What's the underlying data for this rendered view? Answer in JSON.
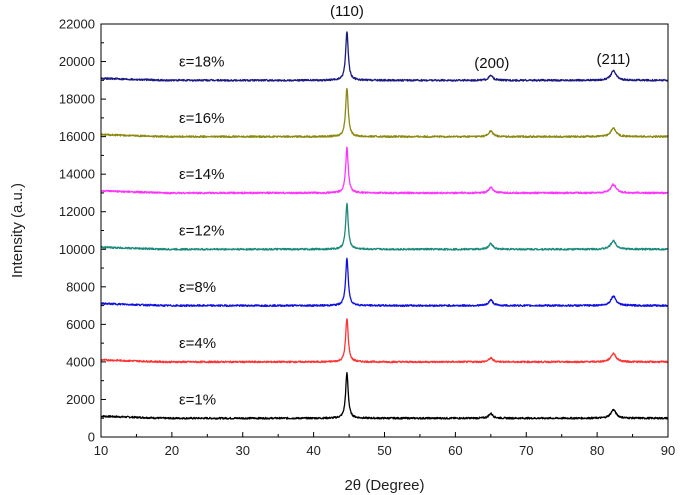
{
  "chart_data": {
    "type": "line",
    "title": "",
    "xlabel": "2θ (Degree)",
    "ylabel": "Intensity (a.u.)",
    "xlim": [
      10,
      90
    ],
    "ylim": [
      0,
      22000
    ],
    "xticks": [
      10,
      20,
      30,
      40,
      50,
      60,
      70,
      80,
      90
    ],
    "yticks": [
      0,
      2000,
      4000,
      6000,
      8000,
      10000,
      12000,
      14000,
      16000,
      18000,
      20000,
      22000
    ],
    "grid": false,
    "legend": "none",
    "peaks": [
      {
        "label": "(110)",
        "x": 44.7
      },
      {
        "label": "(200)",
        "x": 65.0
      },
      {
        "label": "(211)",
        "x": 82.3
      }
    ],
    "series": [
      {
        "name": "ε=1%",
        "color": "#000000",
        "baseline": 1000,
        "peak_heights": [
          3400,
          1250,
          1450
        ],
        "label_x": 21,
        "label_y": 2000
      },
      {
        "name": "ε=4%",
        "color": "#ff3333",
        "baseline": 4000,
        "peak_heights": [
          6300,
          4200,
          4450
        ],
        "label_x": 21,
        "label_y": 5000
      },
      {
        "name": "ε=8%",
        "color": "#1010e0",
        "baseline": 7000,
        "peak_heights": [
          9500,
          7300,
          7500
        ],
        "label_x": 21,
        "label_y": 8000
      },
      {
        "name": "ε=12%",
        "color": "#1a8a7a",
        "baseline": 10000,
        "peak_heights": [
          12400,
          10300,
          10450
        ],
        "label_x": 21,
        "label_y": 11000
      },
      {
        "name": "ε=14%",
        "color": "#ff33ff",
        "baseline": 13000,
        "peak_heights": [
          15400,
          13300,
          13450
        ],
        "label_x": 21,
        "label_y": 14000
      },
      {
        "name": "ε=16%",
        "color": "#8a8a10",
        "baseline": 16000,
        "peak_heights": [
          18600,
          16300,
          16450
        ],
        "label_x": 21,
        "label_y": 17000
      },
      {
        "name": "ε=18%",
        "color": "#1a1a80",
        "baseline": 19000,
        "peak_heights": [
          21600,
          19250,
          19500
        ],
        "label_x": 21,
        "label_y": 20000
      }
    ]
  }
}
